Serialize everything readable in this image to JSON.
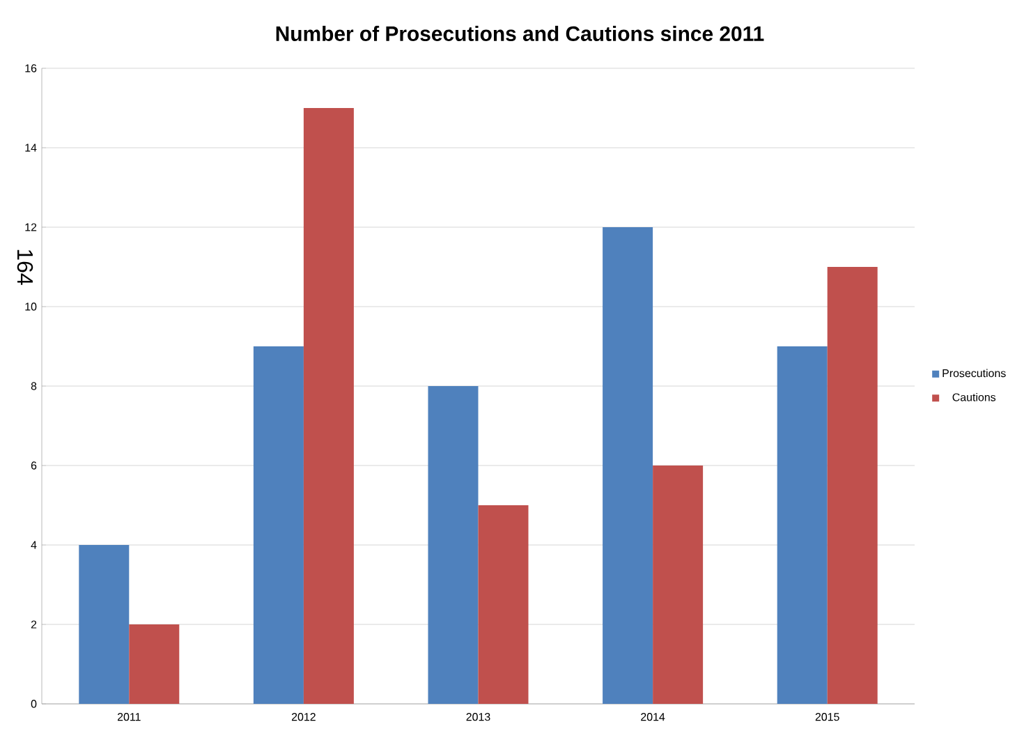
{
  "chart_data": {
    "type": "bar",
    "title": "Number of Prosecutions and Cautions since 2011",
    "categories": [
      "2011",
      "2012",
      "2013",
      "2014",
      "2015"
    ],
    "series": [
      {
        "name": "Prosecutions",
        "color": "#4f81bd",
        "values": [
          4,
          9,
          8,
          12,
          9
        ]
      },
      {
        "name": "Cautions",
        "color": "#c0504d",
        "values": [
          2,
          15,
          5,
          6,
          11
        ]
      }
    ],
    "ylim": [
      0,
      16
    ],
    "yticks": [
      0,
      2,
      4,
      6,
      8,
      10,
      12,
      14,
      16
    ],
    "grid": "y",
    "legend": "right",
    "annotations": [
      "164"
    ]
  }
}
